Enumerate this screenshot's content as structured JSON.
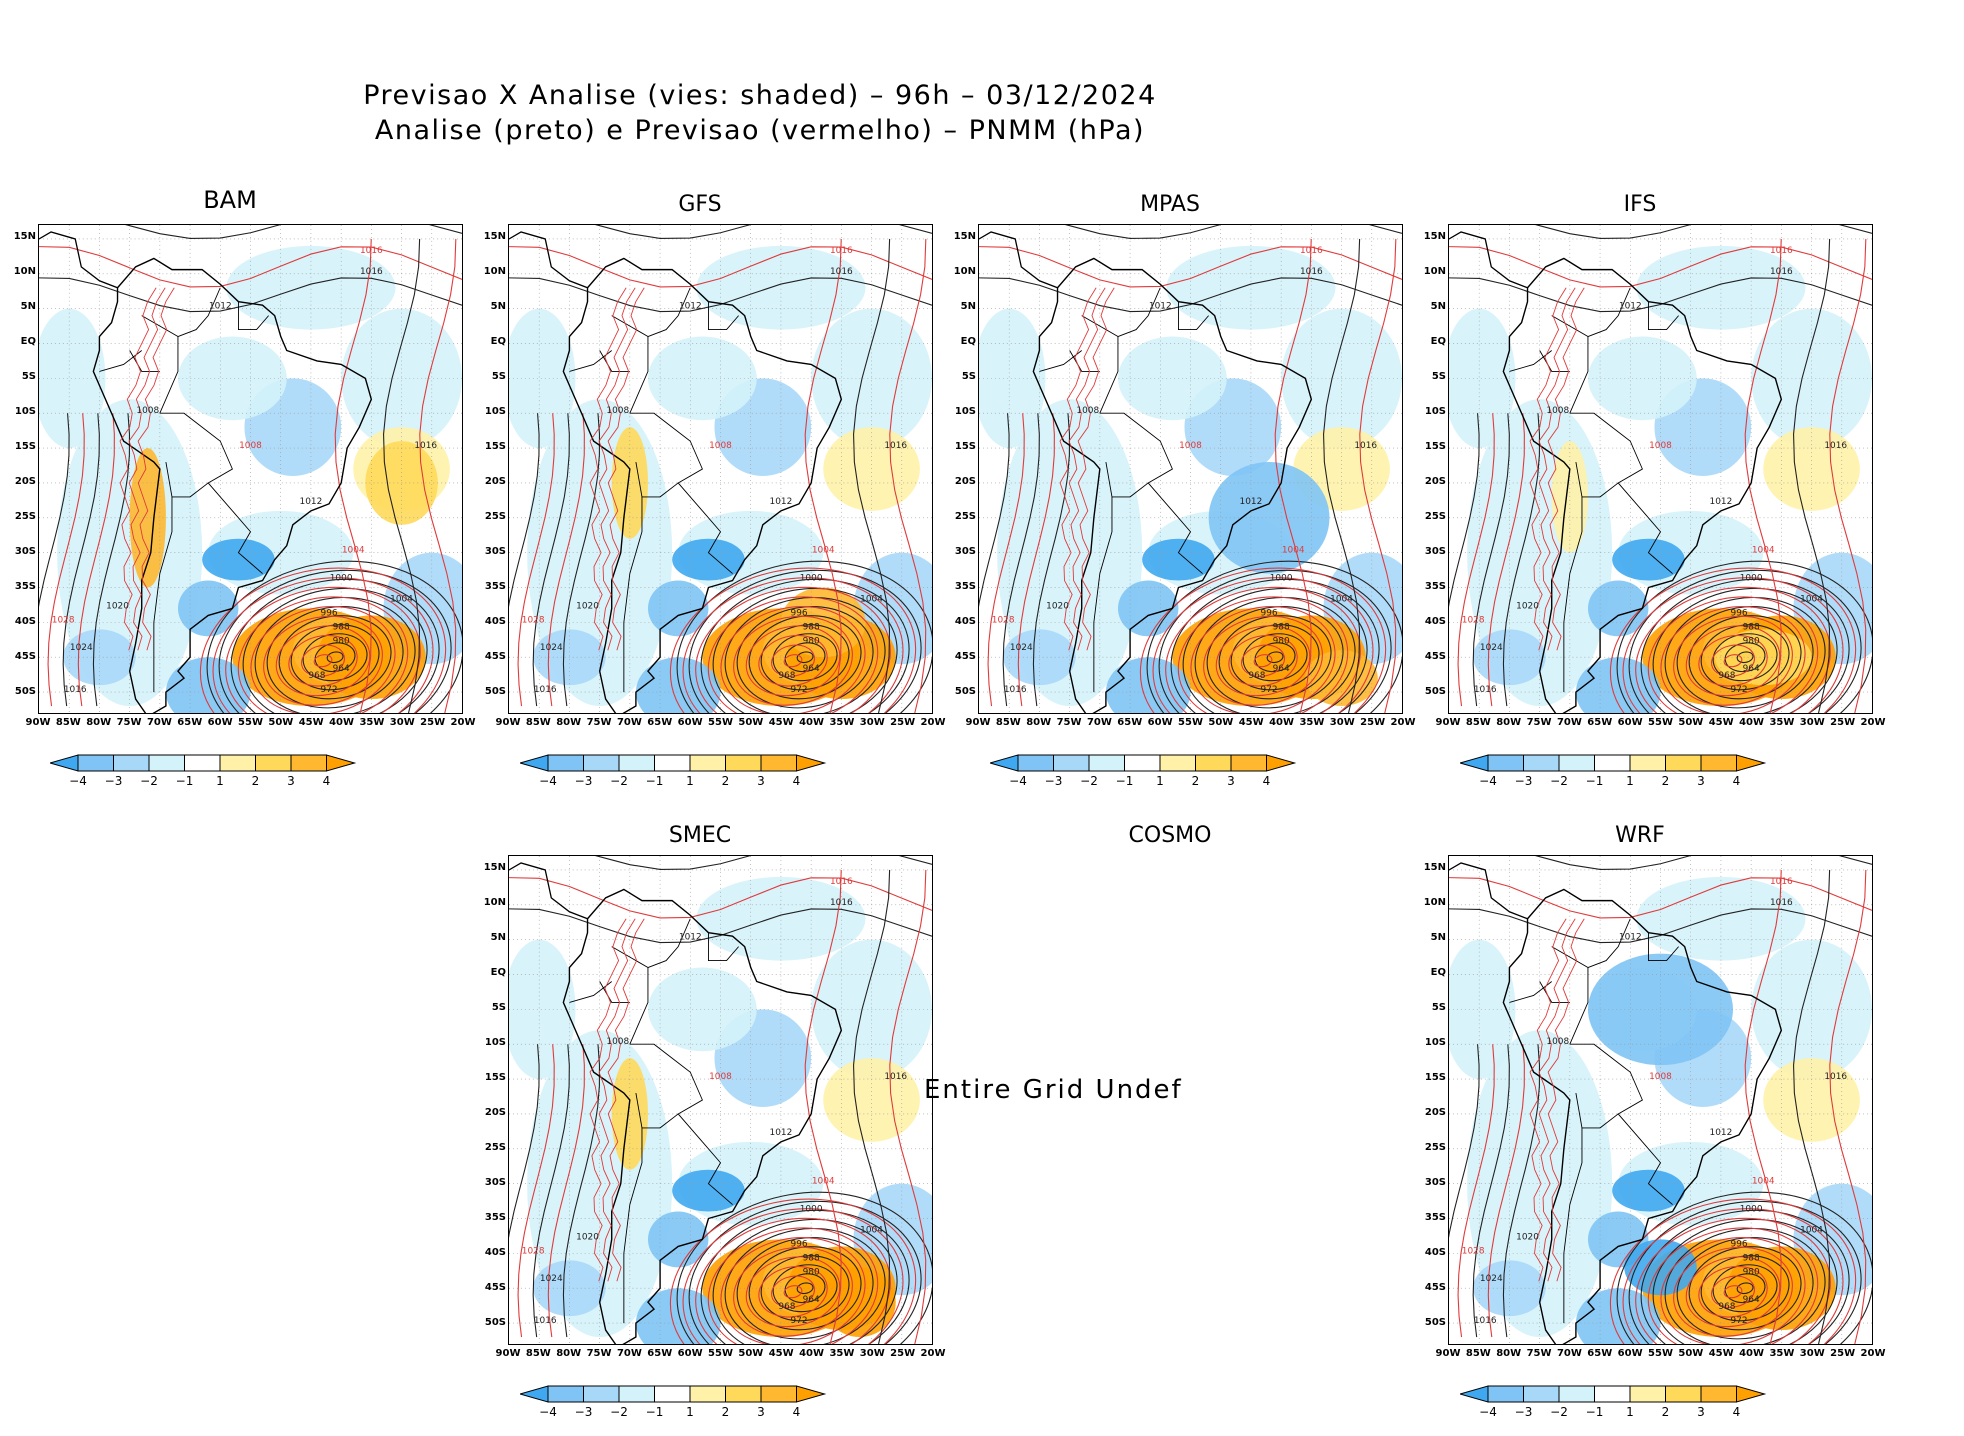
{
  "figure": {
    "title_line1": "Previsao X Analise (vies: shaded) – 96h – 03/12/2024",
    "title_line2": "Analise (preto) e Previsao (vermelho) – PNMM (hPa)"
  },
  "axes": {
    "lat_labels": [
      "15N",
      "10N",
      "5N",
      "EQ",
      "5S",
      "10S",
      "15S",
      "20S",
      "25S",
      "30S",
      "35S",
      "40S",
      "45S",
      "50S"
    ],
    "lon_labels": [
      "90W",
      "85W",
      "80W",
      "75W",
      "70W",
      "65W",
      "60W",
      "55W",
      "50W",
      "45W",
      "40W",
      "35W",
      "30W",
      "25W",
      "20W"
    ]
  },
  "colorbar": {
    "labels": [
      "-4",
      "-3",
      "-2",
      "-1",
      "1",
      "2",
      "3",
      "4"
    ],
    "colors": [
      "#3fa8f0",
      "#7fc4f5",
      "#a8d8f8",
      "#d4f2fa",
      "#ffffff",
      "#fff2a8",
      "#ffd95a",
      "#ffb830",
      "#ffa000"
    ]
  },
  "panels": [
    {
      "id": "bam",
      "name": "BAM",
      "has_data": true
    },
    {
      "id": "gfs",
      "name": "GFS",
      "has_data": true
    },
    {
      "id": "mpas",
      "name": "MPAS",
      "has_data": true
    },
    {
      "id": "ifs",
      "name": "IFS",
      "has_data": true
    },
    {
      "id": "smec",
      "name": "SMEC",
      "has_data": true
    },
    {
      "id": "cosmo",
      "name": "COSMO",
      "has_data": false,
      "message": "Entire Grid Undef"
    },
    {
      "id": "wrf",
      "name": "WRF",
      "has_data": true
    }
  ],
  "contour_labels": {
    "analysis_black": [
      "1016",
      "1012",
      "1008",
      "1004",
      "1000",
      "996",
      "988",
      "980",
      "972",
      "968",
      "964",
      "976",
      "1020",
      "1024",
      "1028"
    ],
    "forecast_red": [
      "1016",
      "1012",
      "1008",
      "1004",
      "1000",
      "996",
      "1020",
      "1024",
      "1028",
      "980",
      "988"
    ]
  }
}
